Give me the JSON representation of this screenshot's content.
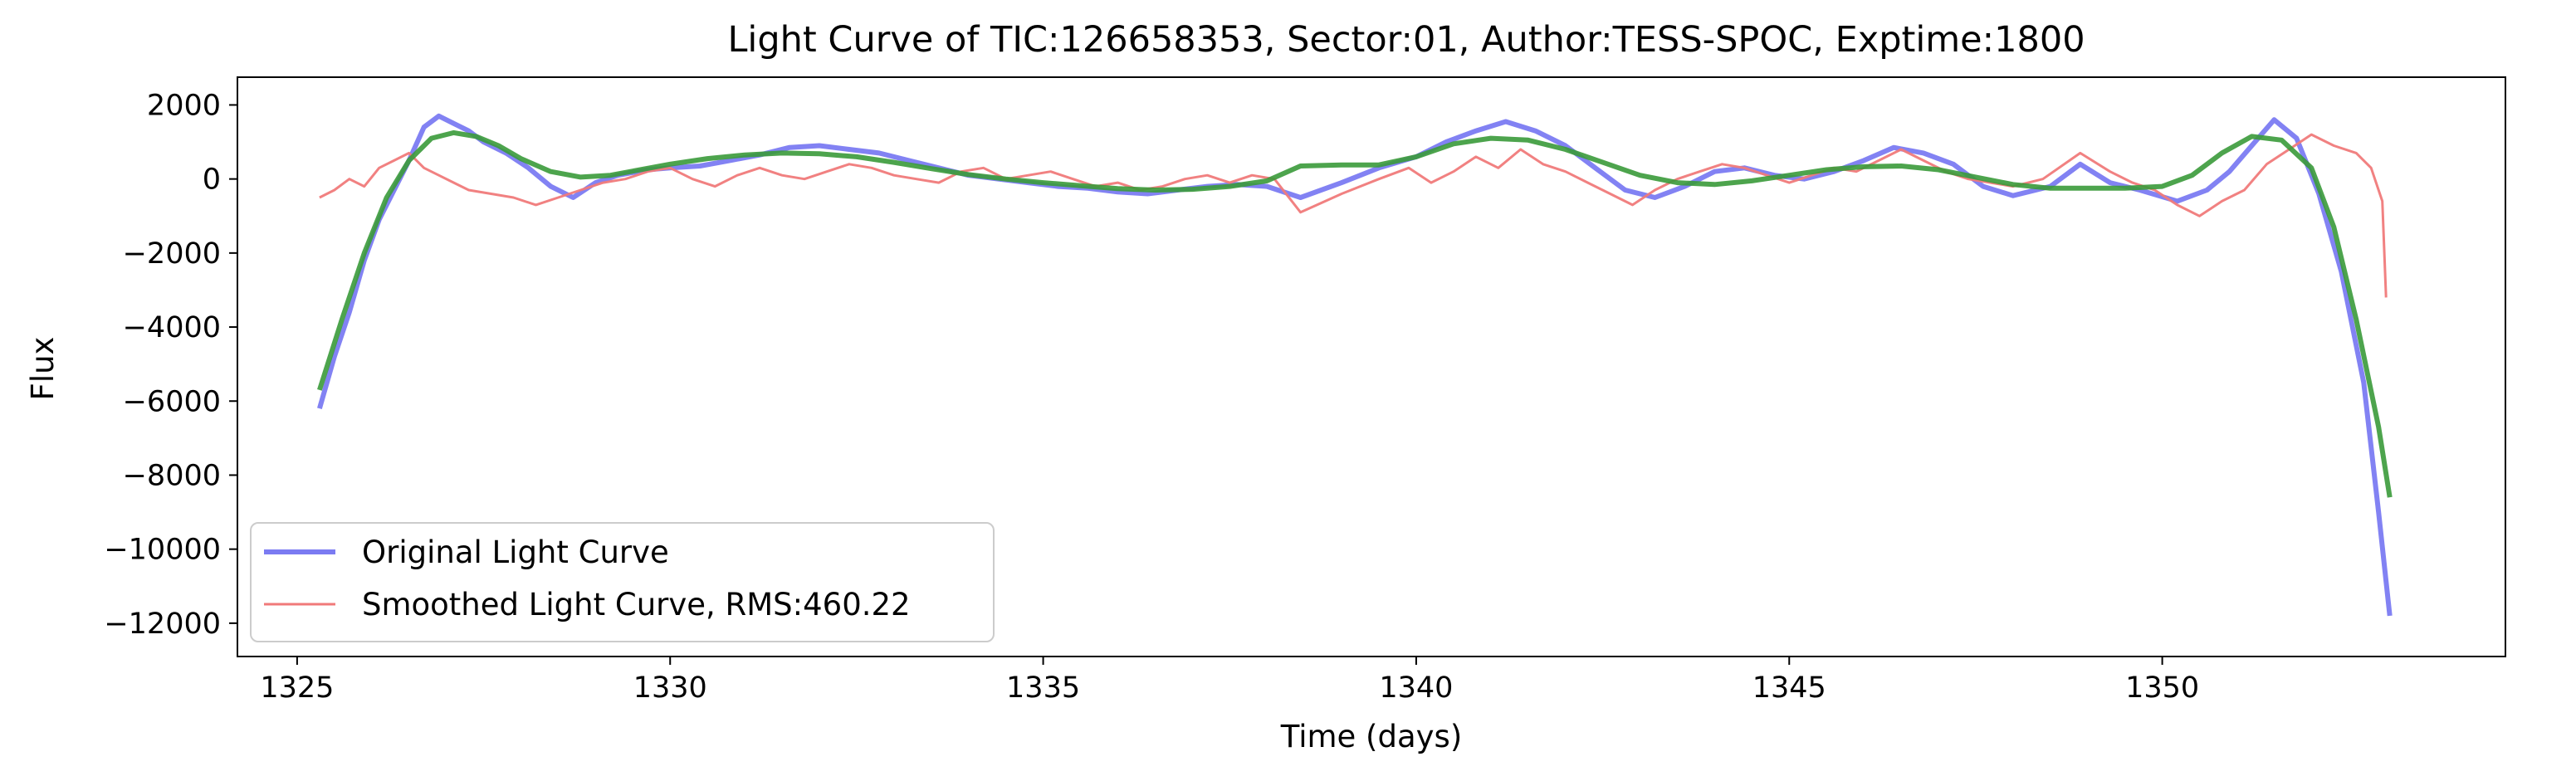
{
  "chart_data": {
    "type": "line",
    "title": "Light Curve of TIC:126658353, Sector:01, Author:TESS-SPOC, Exptime:1800",
    "xlabel": "Time (days)",
    "ylabel": "Flux",
    "xlim": [
      1324.2,
      1354.6
    ],
    "ylim": [
      -12900,
      2750
    ],
    "xticks": [
      1325,
      1330,
      1335,
      1340,
      1345,
      1350
    ],
    "yticks": [
      2000,
      0,
      -2000,
      -4000,
      -6000,
      -8000,
      -10000,
      -12000
    ],
    "xtick_labels": [
      "1325",
      "1330",
      "1335",
      "1340",
      "1345",
      "1350"
    ],
    "ytick_labels": [
      "2000",
      "0",
      "−2000",
      "−4000",
      "−6000",
      "−8000",
      "−10000",
      "−12000"
    ],
    "grid": false,
    "legend_position": "lower-left",
    "series": [
      {
        "name": "Original Light Curve",
        "color": "#7b7bf2",
        "points": [
          [
            1325.3,
            -6200
          ],
          [
            1325.5,
            -4800
          ],
          [
            1325.7,
            -3600
          ],
          [
            1325.9,
            -2200
          ],
          [
            1326.1,
            -1100
          ],
          [
            1326.3,
            -300
          ],
          [
            1326.5,
            500
          ],
          [
            1326.7,
            1400
          ],
          [
            1326.9,
            1700
          ],
          [
            1327.1,
            1500
          ],
          [
            1327.3,
            1300
          ],
          [
            1327.5,
            1000
          ],
          [
            1327.8,
            700
          ],
          [
            1328.1,
            300
          ],
          [
            1328.4,
            -200
          ],
          [
            1328.7,
            -500
          ],
          [
            1329.0,
            -100
          ],
          [
            1329.3,
            100
          ],
          [
            1329.7,
            250
          ],
          [
            1330.0,
            300
          ],
          [
            1330.4,
            350
          ],
          [
            1330.8,
            500
          ],
          [
            1331.2,
            650
          ],
          [
            1331.6,
            850
          ],
          [
            1332.0,
            900
          ],
          [
            1332.4,
            800
          ],
          [
            1332.8,
            700
          ],
          [
            1333.2,
            500
          ],
          [
            1333.6,
            300
          ],
          [
            1334.0,
            100
          ],
          [
            1334.4,
            0
          ],
          [
            1334.8,
            -100
          ],
          [
            1335.2,
            -200
          ],
          [
            1335.6,
            -250
          ],
          [
            1336.0,
            -350
          ],
          [
            1336.4,
            -400
          ],
          [
            1336.8,
            -300
          ],
          [
            1337.2,
            -200
          ],
          [
            1337.6,
            -150
          ],
          [
            1338.0,
            -200
          ],
          [
            1338.45,
            -500
          ],
          [
            1339.0,
            -100
          ],
          [
            1339.5,
            300
          ],
          [
            1340.0,
            600
          ],
          [
            1340.4,
            1000
          ],
          [
            1340.8,
            1300
          ],
          [
            1341.2,
            1550
          ],
          [
            1341.6,
            1300
          ],
          [
            1342.0,
            900
          ],
          [
            1342.4,
            300
          ],
          [
            1342.8,
            -300
          ],
          [
            1343.2,
            -500
          ],
          [
            1343.6,
            -200
          ],
          [
            1344.0,
            200
          ],
          [
            1344.4,
            300
          ],
          [
            1344.8,
            100
          ],
          [
            1345.2,
            0
          ],
          [
            1345.6,
            200
          ],
          [
            1346.0,
            500
          ],
          [
            1346.4,
            850
          ],
          [
            1346.8,
            700
          ],
          [
            1347.2,
            400
          ],
          [
            1347.6,
            -200
          ],
          [
            1348.0,
            -450
          ],
          [
            1348.5,
            -200
          ],
          [
            1348.9,
            400
          ],
          [
            1349.3,
            -100
          ],
          [
            1349.7,
            -300
          ],
          [
            1350.2,
            -600
          ],
          [
            1350.6,
            -300
          ],
          [
            1350.9,
            200
          ],
          [
            1351.2,
            900
          ],
          [
            1351.5,
            1600
          ],
          [
            1351.8,
            1100
          ],
          [
            1352.1,
            -400
          ],
          [
            1352.4,
            -2500
          ],
          [
            1352.7,
            -5500
          ],
          [
            1352.9,
            -9000
          ],
          [
            1353.05,
            -11800
          ]
        ]
      },
      {
        "name": "Smoothed Light Curve, RMS:460.22",
        "color": "#f07a7a",
        "points": [
          [
            1325.3,
            -500
          ],
          [
            1325.5,
            -300
          ],
          [
            1325.7,
            0
          ],
          [
            1325.9,
            -200
          ],
          [
            1326.1,
            300
          ],
          [
            1326.3,
            500
          ],
          [
            1326.5,
            700
          ],
          [
            1326.7,
            300
          ],
          [
            1326.9,
            100
          ],
          [
            1327.1,
            -100
          ],
          [
            1327.3,
            -300
          ],
          [
            1327.6,
            -400
          ],
          [
            1327.9,
            -500
          ],
          [
            1328.2,
            -700
          ],
          [
            1328.5,
            -500
          ],
          [
            1328.8,
            -300
          ],
          [
            1329.1,
            -100
          ],
          [
            1329.4,
            0
          ],
          [
            1329.7,
            200
          ],
          [
            1330.0,
            300
          ],
          [
            1330.3,
            0
          ],
          [
            1330.6,
            -200
          ],
          [
            1330.9,
            100
          ],
          [
            1331.2,
            300
          ],
          [
            1331.5,
            100
          ],
          [
            1331.8,
            0
          ],
          [
            1332.1,
            200
          ],
          [
            1332.4,
            400
          ],
          [
            1332.7,
            300
          ],
          [
            1333.0,
            100
          ],
          [
            1333.3,
            0
          ],
          [
            1333.6,
            -100
          ],
          [
            1333.9,
            200
          ],
          [
            1334.2,
            300
          ],
          [
            1334.5,
            0
          ],
          [
            1334.8,
            100
          ],
          [
            1335.1,
            200
          ],
          [
            1335.4,
            0
          ],
          [
            1335.7,
            -200
          ],
          [
            1336.0,
            -100
          ],
          [
            1336.3,
            -300
          ],
          [
            1336.6,
            -200
          ],
          [
            1336.9,
            0
          ],
          [
            1337.2,
            100
          ],
          [
            1337.5,
            -100
          ],
          [
            1337.8,
            100
          ],
          [
            1338.1,
            0
          ],
          [
            1338.45,
            -900
          ],
          [
            1339.0,
            -400
          ],
          [
            1339.5,
            0
          ],
          [
            1339.9,
            300
          ],
          [
            1340.2,
            -100
          ],
          [
            1340.5,
            200
          ],
          [
            1340.8,
            600
          ],
          [
            1341.1,
            300
          ],
          [
            1341.4,
            800
          ],
          [
            1341.7,
            400
          ],
          [
            1342.0,
            200
          ],
          [
            1342.3,
            -100
          ],
          [
            1342.6,
            -400
          ],
          [
            1342.9,
            -700
          ],
          [
            1343.2,
            -300
          ],
          [
            1343.5,
            0
          ],
          [
            1343.8,
            200
          ],
          [
            1344.1,
            400
          ],
          [
            1344.4,
            300
          ],
          [
            1344.7,
            100
          ],
          [
            1345.0,
            -100
          ],
          [
            1345.3,
            100
          ],
          [
            1345.6,
            300
          ],
          [
            1345.9,
            200
          ],
          [
            1346.2,
            500
          ],
          [
            1346.5,
            800
          ],
          [
            1346.8,
            500
          ],
          [
            1347.1,
            200
          ],
          [
            1347.4,
            0
          ],
          [
            1347.7,
            -100
          ],
          [
            1348.0,
            -200
          ],
          [
            1348.4,
            0
          ],
          [
            1348.9,
            700
          ],
          [
            1349.3,
            200
          ],
          [
            1349.6,
            -100
          ],
          [
            1349.9,
            -300
          ],
          [
            1350.2,
            -700
          ],
          [
            1350.5,
            -1000
          ],
          [
            1350.8,
            -600
          ],
          [
            1351.1,
            -300
          ],
          [
            1351.4,
            400
          ],
          [
            1351.7,
            800
          ],
          [
            1352.0,
            1200
          ],
          [
            1352.3,
            900
          ],
          [
            1352.6,
            700
          ],
          [
            1352.8,
            300
          ],
          [
            1352.95,
            -600
          ],
          [
            1353.0,
            -3200
          ]
        ]
      },
      {
        "name": "",
        "color": "#3a9a3a",
        "points": [
          [
            1325.3,
            -5700
          ],
          [
            1325.6,
            -3800
          ],
          [
            1325.9,
            -2000
          ],
          [
            1326.2,
            -500
          ],
          [
            1326.5,
            500
          ],
          [
            1326.8,
            1100
          ],
          [
            1327.1,
            1250
          ],
          [
            1327.4,
            1150
          ],
          [
            1327.7,
            900
          ],
          [
            1328.0,
            550
          ],
          [
            1328.4,
            200
          ],
          [
            1328.8,
            50
          ],
          [
            1329.2,
            100
          ],
          [
            1329.6,
            250
          ],
          [
            1330.0,
            400
          ],
          [
            1330.5,
            550
          ],
          [
            1331.0,
            650
          ],
          [
            1331.5,
            700
          ],
          [
            1332.0,
            680
          ],
          [
            1332.5,
            600
          ],
          [
            1333.0,
            450
          ],
          [
            1333.5,
            280
          ],
          [
            1334.0,
            120
          ],
          [
            1334.5,
            0
          ],
          [
            1335.0,
            -100
          ],
          [
            1335.5,
            -180
          ],
          [
            1336.0,
            -260
          ],
          [
            1336.5,
            -300
          ],
          [
            1337.0,
            -280
          ],
          [
            1337.5,
            -200
          ],
          [
            1338.0,
            -50
          ],
          [
            1338.45,
            350
          ],
          [
            1339.0,
            380
          ],
          [
            1339.5,
            380
          ],
          [
            1340.0,
            600
          ],
          [
            1340.5,
            950
          ],
          [
            1341.0,
            1100
          ],
          [
            1341.5,
            1050
          ],
          [
            1342.0,
            800
          ],
          [
            1342.5,
            450
          ],
          [
            1343.0,
            100
          ],
          [
            1343.5,
            -100
          ],
          [
            1344.0,
            -150
          ],
          [
            1344.5,
            -50
          ],
          [
            1345.0,
            100
          ],
          [
            1345.5,
            250
          ],
          [
            1346.0,
            330
          ],
          [
            1346.5,
            350
          ],
          [
            1347.0,
            250
          ],
          [
            1347.5,
            50
          ],
          [
            1348.0,
            -150
          ],
          [
            1348.5,
            -250
          ],
          [
            1349.0,
            -250
          ],
          [
            1349.5,
            -250
          ],
          [
            1350.0,
            -200
          ],
          [
            1350.4,
            100
          ],
          [
            1350.8,
            700
          ],
          [
            1351.2,
            1150
          ],
          [
            1351.6,
            1050
          ],
          [
            1352.0,
            300
          ],
          [
            1352.3,
            -1300
          ],
          [
            1352.6,
            -3800
          ],
          [
            1352.9,
            -6700
          ],
          [
            1353.05,
            -8600
          ]
        ]
      }
    ]
  }
}
